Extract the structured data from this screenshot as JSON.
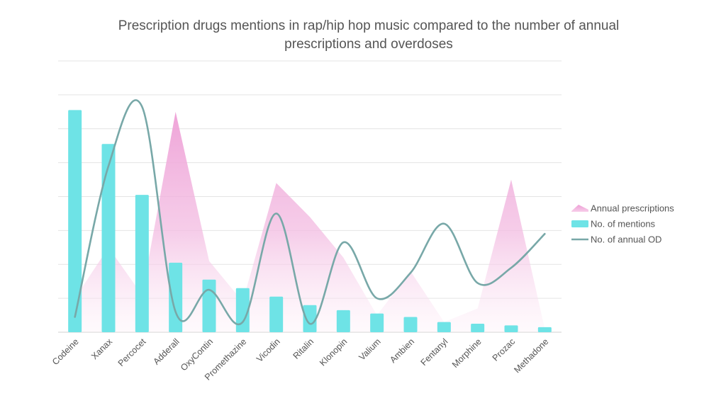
{
  "chart_data": {
    "type": "bar",
    "title": "Prescription drugs mentions in rap/hip hop music compared to the number of annual prescriptions and overdoses",
    "xlabel": "",
    "ylabel": "",
    "categories": [
      "Codeine",
      "Xanax",
      "Percocet",
      "Adderall",
      "OxyContin",
      "Promethazine",
      "Vicodin",
      "Ritalin",
      "Klonopin",
      "Valium",
      "Ambien",
      "Fentanyl",
      "Morphine",
      "Prozac",
      "Methadone"
    ],
    "ylim": [
      0,
      8
    ],
    "grid": true,
    "legend_position": "right",
    "series": [
      {
        "name": "Annual prescriptions",
        "type": "area",
        "color": "#f0a8d8",
        "values": [
          1.0,
          2.5,
          1.1,
          6.5,
          2.1,
          0.9,
          4.4,
          3.4,
          2.2,
          0.5,
          1.8,
          0.3,
          0.7,
          4.5,
          0.1
        ]
      },
      {
        "name": "No. of mentions",
        "type": "bar",
        "color": "#6ee3e6",
        "values": [
          6.55,
          5.55,
          4.05,
          2.05,
          1.55,
          1.3,
          1.05,
          0.8,
          0.65,
          0.55,
          0.45,
          0.3,
          0.25,
          0.2,
          0.15
        ]
      },
      {
        "name": "No. of annual OD",
        "type": "line",
        "color": "#78a8a8",
        "values": [
          0.45,
          4.9,
          6.65,
          0.6,
          1.25,
          0.3,
          3.5,
          0.25,
          2.65,
          1.0,
          1.75,
          3.2,
          1.45,
          1.9,
          2.9
        ]
      }
    ]
  }
}
